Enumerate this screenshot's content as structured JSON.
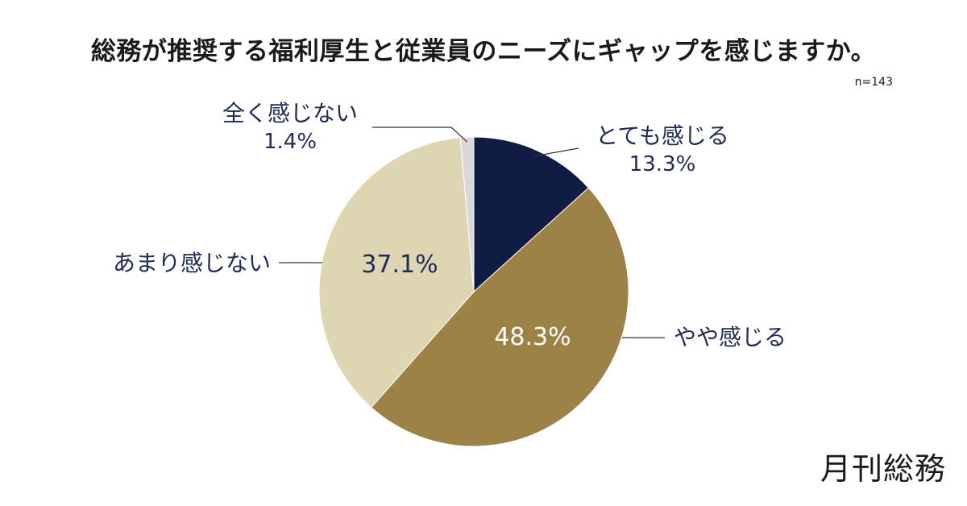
{
  "title": "総務が推奨する福利厚生と従業員のニーズにギャップを感じますか。",
  "sample_size": "n=143",
  "brand": "月刊総務",
  "chart_data": {
    "type": "pie",
    "title": "総務が推奨する福利厚生と従業員のニーズにギャップを感じますか。",
    "n": 143,
    "start": "12 o'clock",
    "direction": "clockwise",
    "slices": [
      {
        "label": "とても感じる",
        "value": 13.3,
        "value_label": "13.3%",
        "color": "#111c45",
        "label_position": "outside-right"
      },
      {
        "label": "やや感じる",
        "value": 48.3,
        "value_label": "48.3%",
        "color": "#9d8245",
        "label_position": "inside"
      },
      {
        "label": "あまり感じない",
        "value": 37.1,
        "value_label": "37.1%",
        "color": "#ded6b2",
        "label_position": "inside"
      },
      {
        "label": "全く感じない",
        "value": 1.4,
        "value_label": "1.4%",
        "color": "#d9d9dc",
        "label_position": "outside-left"
      }
    ],
    "label_color": "#1f2a55",
    "inside_label_color_dark": "#ffffff"
  }
}
